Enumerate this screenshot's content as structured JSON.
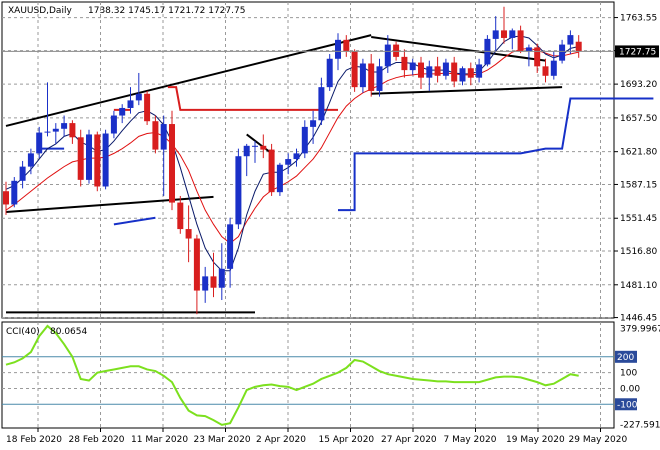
{
  "chart_data": [
    {
      "type": "candlestick",
      "header": {
        "symbol": "XAUUSD,Daily",
        "ohlc": "1738.32 1745.17 1721.72 1727.75"
      },
      "current_price_label": "1727.75",
      "y_ticks": [
        "1763.55",
        "1728.58",
        "1693.20",
        "1657.50",
        "1621.80",
        "1587.15",
        "1551.45",
        "1516.80",
        "1481.10",
        "1446.45"
      ],
      "ylim": [
        1446,
        1780
      ],
      "x_labels": [
        "18 Feb 2020",
        "28 Feb 2020",
        "11 Mar 2020",
        "23 Mar 2020",
        "2 Apr 2020",
        "15 Apr 2020",
        "27 Apr 2020",
        "7 May 2020",
        "19 May 2020",
        "29 May 2020"
      ],
      "candles": [
        [
          1580,
          1590,
          1555,
          1566
        ],
        [
          1566,
          1595,
          1563,
          1591
        ],
        [
          1591,
          1612,
          1583,
          1606
        ],
        [
          1606,
          1625,
          1598,
          1620
        ],
        [
          1620,
          1648,
          1615,
          1642
        ],
        [
          1642,
          1695,
          1638,
          1643
        ],
        [
          1643,
          1652,
          1630,
          1646
        ],
        [
          1646,
          1660,
          1638,
          1652
        ],
        [
          1652,
          1655,
          1630,
          1637
        ],
        [
          1637,
          1645,
          1585,
          1592
        ],
        [
          1592,
          1645,
          1588,
          1640
        ],
        [
          1640,
          1643,
          1580,
          1585
        ],
        [
          1585,
          1645,
          1582,
          1641
        ],
        [
          1641,
          1665,
          1636,
          1660
        ],
        [
          1660,
          1672,
          1652,
          1668
        ],
        [
          1668,
          1690,
          1662,
          1676
        ],
        [
          1676,
          1705,
          1671,
          1683
        ],
        [
          1683,
          1686,
          1650,
          1654
        ],
        [
          1654,
          1660,
          1620,
          1624
        ],
        [
          1624,
          1660,
          1575,
          1651
        ],
        [
          1651,
          1665,
          1560,
          1568
        ],
        [
          1568,
          1575,
          1535,
          1540
        ],
        [
          1540,
          1565,
          1505,
          1530
        ],
        [
          1530,
          1534,
          1450,
          1475
        ],
        [
          1475,
          1500,
          1462,
          1490
        ],
        [
          1490,
          1515,
          1468,
          1478
        ],
        [
          1478,
          1525,
          1465,
          1498
        ],
        [
          1498,
          1552,
          1478,
          1545
        ],
        [
          1545,
          1625,
          1540,
          1617
        ],
        [
          1617,
          1630,
          1596,
          1628
        ],
        [
          1628,
          1633,
          1610,
          1628
        ],
        [
          1628,
          1640,
          1615,
          1624
        ],
        [
          1624,
          1630,
          1575,
          1579
        ],
        [
          1579,
          1610,
          1575,
          1608
        ],
        [
          1608,
          1620,
          1598,
          1614
        ],
        [
          1614,
          1625,
          1606,
          1620
        ],
        [
          1620,
          1655,
          1615,
          1648
        ],
        [
          1648,
          1665,
          1630,
          1655
        ],
        [
          1655,
          1700,
          1650,
          1690
        ],
        [
          1690,
          1725,
          1686,
          1720
        ],
        [
          1720,
          1747,
          1708,
          1740
        ],
        [
          1740,
          1745,
          1722,
          1728
        ],
        [
          1728,
          1730,
          1685,
          1690
        ],
        [
          1690,
          1720,
          1684,
          1715
        ],
        [
          1715,
          1725,
          1680,
          1686
        ],
        [
          1686,
          1720,
          1680,
          1712
        ],
        [
          1712,
          1745,
          1705,
          1735
        ],
        [
          1735,
          1738,
          1718,
          1722
        ],
        [
          1722,
          1730,
          1700,
          1708
        ],
        [
          1708,
          1720,
          1703,
          1716
        ],
        [
          1716,
          1722,
          1688,
          1700
        ],
        [
          1700,
          1718,
          1686,
          1712
        ],
        [
          1712,
          1722,
          1695,
          1702
        ],
        [
          1702,
          1720,
          1698,
          1716
        ],
        [
          1716,
          1722,
          1690,
          1696
        ],
        [
          1696,
          1712,
          1692,
          1710
        ],
        [
          1710,
          1716,
          1692,
          1700
        ],
        [
          1700,
          1720,
          1695,
          1714
        ],
        [
          1714,
          1745,
          1712,
          1741
        ],
        [
          1741,
          1765,
          1728,
          1750
        ],
        [
          1750,
          1775,
          1736,
          1742
        ],
        [
          1742,
          1752,
          1730,
          1750
        ],
        [
          1750,
          1755,
          1726,
          1728
        ],
        [
          1728,
          1735,
          1712,
          1732
        ],
        [
          1732,
          1736,
          1705,
          1712
        ],
        [
          1712,
          1720,
          1695,
          1702
        ],
        [
          1702,
          1728,
          1698,
          1718
        ],
        [
          1718,
          1740,
          1715,
          1735
        ],
        [
          1735,
          1750,
          1725,
          1745
        ],
        [
          1738,
          1745,
          1721,
          1728
        ]
      ],
      "ma_fast": [
        1582,
        1586,
        1594,
        1603,
        1614,
        1625,
        1630,
        1638,
        1641,
        1632,
        1628,
        1622,
        1624,
        1633,
        1644,
        1654,
        1663,
        1665,
        1660,
        1650,
        1632,
        1605,
        1575,
        1545,
        1520,
        1505,
        1496,
        1496,
        1520,
        1555,
        1580,
        1598,
        1600,
        1600,
        1605,
        1612,
        1625,
        1637,
        1653,
        1674,
        1696,
        1708,
        1712,
        1711,
        1706,
        1706,
        1712,
        1716,
        1716,
        1715,
        1711,
        1708,
        1708,
        1708,
        1705,
        1704,
        1704,
        1707,
        1716,
        1728,
        1738,
        1743,
        1744,
        1742,
        1734,
        1725,
        1721,
        1724,
        1731,
        1733
      ],
      "ma_slow": [
        1560,
        1566,
        1573,
        1580,
        1587,
        1594,
        1600,
        1606,
        1611,
        1613,
        1615,
        1615,
        1616,
        1620,
        1625,
        1631,
        1638,
        1641,
        1642,
        1638,
        1630,
        1618,
        1602,
        1580,
        1560,
        1545,
        1532,
        1525,
        1532,
        1548,
        1562,
        1574,
        1581,
        1585,
        1590,
        1596,
        1605,
        1614,
        1626,
        1642,
        1658,
        1670,
        1678,
        1684,
        1688,
        1692,
        1697,
        1700,
        1702,
        1703,
        1704,
        1704,
        1704,
        1705,
        1704,
        1703,
        1703,
        1704,
        1708,
        1714,
        1721,
        1727,
        1730,
        1731,
        1729,
        1726,
        1723,
        1723,
        1725,
        1727
      ],
      "cci": {
        "label": "CCI(40)",
        "value_label": "80.0654",
        "ylim": [
          -250,
          420
        ],
        "tick_labels": [
          "379.9967",
          "200",
          "100",
          "0.00",
          "-100",
          "-227.591"
        ],
        "tick_values": [
          379.9967,
          200,
          100,
          0,
          -100,
          -227.591
        ],
        "values": [
          150,
          165,
          190,
          230,
          330,
          395,
          350,
          280,
          200,
          60,
          50,
          100,
          110,
          120,
          130,
          140,
          140,
          120,
          110,
          80,
          40,
          -60,
          -140,
          -170,
          -175,
          -200,
          -230,
          -220,
          -120,
          -10,
          10,
          20,
          25,
          15,
          10,
          -10,
          10,
          30,
          60,
          80,
          100,
          130,
          180,
          170,
          140,
          110,
          90,
          80,
          70,
          60,
          55,
          50,
          45,
          45,
          40,
          40,
          40,
          40,
          55,
          70,
          75,
          75,
          70,
          55,
          40,
          20,
          30,
          60,
          90,
          80
        ]
      },
      "annotations": {
        "lines": [
          {
            "x": [
              0,
              44
            ],
            "y": [
              1649,
              1745
            ],
            "color": "#000000"
          },
          {
            "x": [
              44,
              65
            ],
            "y": [
              1743,
              1718
            ],
            "color": "#000000"
          },
          {
            "x": [
              44,
              67
            ],
            "y": [
              1683,
              1690
            ],
            "color": "#000000"
          },
          {
            "x": [
              0,
              25
            ],
            "y": [
              1558,
              1574
            ],
            "color": "#000000"
          },
          {
            "x": [
              0,
              30
            ],
            "y": [
              1452,
              1452
            ],
            "color": "#000000"
          },
          {
            "x": [
              29,
              32
            ],
            "y": [
              1640,
              1620
            ],
            "color": "#000000"
          }
        ],
        "steps": [
          {
            "x": [
              13,
              15
            ],
            "y": [
              1666,
              1666
            ],
            "color": "#d81e1e"
          },
          {
            "x": [
              19.5,
              20.5,
              21,
              40
            ],
            "y": [
              1690,
              1690,
              1666,
              1666
            ],
            "color": "#d81e1e"
          },
          {
            "x": [
              13,
              18
            ],
            "y": [
              1545,
              1552
            ],
            "color": "#1630c8"
          },
          {
            "x": [
              40,
              42,
              42,
              61,
              62,
              65,
              67,
              68,
              78
            ],
            "y": [
              1560,
              1560,
              1620,
              1620,
              1620,
              1625,
              1625,
              1678,
              1678
            ],
            "color": "#1630c8"
          },
          {
            "x": [
              4,
              7
            ],
            "y": [
              1625,
              1625
            ],
            "color": "#1630c8"
          }
        ]
      }
    }
  ]
}
